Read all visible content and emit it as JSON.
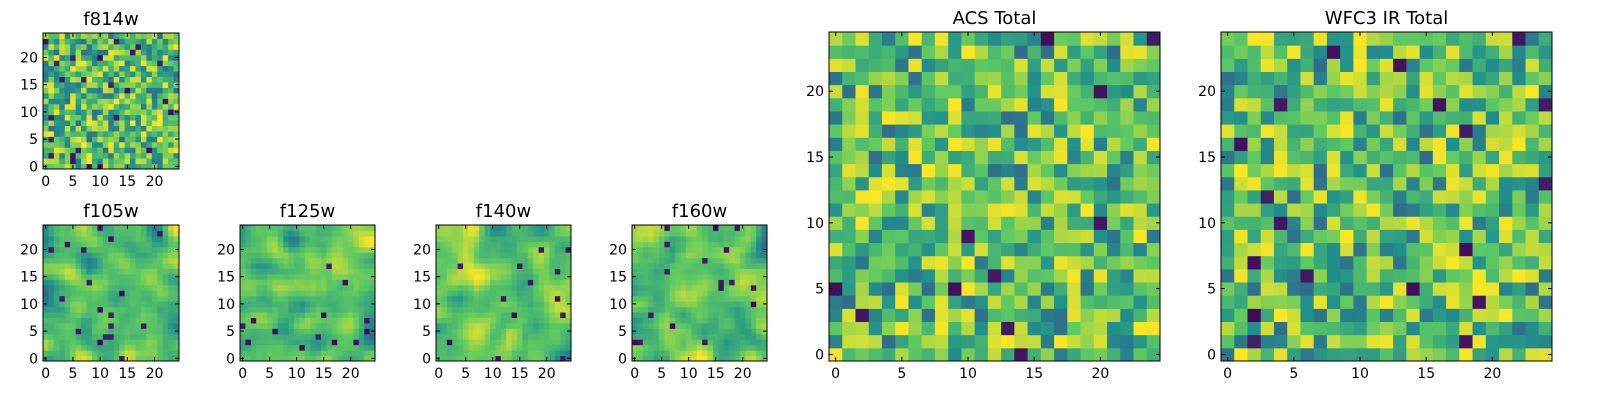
{
  "chart_data": [
    {
      "type": "heatmap",
      "title": "f814w",
      "grid_size": 25,
      "xlim": [
        0,
        25
      ],
      "ylim": [
        0,
        25
      ],
      "xticks": [
        0,
        5,
        10,
        15,
        20
      ],
      "yticks": [
        0,
        5,
        10,
        15,
        20
      ],
      "xtick_labels": [
        "0",
        "5",
        "10",
        "15",
        "20"
      ],
      "ytick_labels": [
        "0",
        "5",
        "10",
        "15",
        "20"
      ],
      "colormap": "viridis",
      "seed": 11,
      "smoothness": 0
    },
    {
      "type": "heatmap",
      "title": "f105w",
      "grid_size": 25,
      "xlim": [
        0,
        25
      ],
      "ylim": [
        0,
        25
      ],
      "xticks": [
        0,
        5,
        10,
        15,
        20
      ],
      "yticks": [
        0,
        5,
        10,
        15,
        20
      ],
      "xtick_labels": [
        "0",
        "5",
        "10",
        "15",
        "20"
      ],
      "ytick_labels": [
        "0",
        "5",
        "10",
        "15",
        "20"
      ],
      "colormap": "viridis",
      "seed": 23,
      "smoothness": 2
    },
    {
      "type": "heatmap",
      "title": "f125w",
      "grid_size": 25,
      "xlim": [
        0,
        25
      ],
      "ylim": [
        0,
        25
      ],
      "xticks": [
        0,
        5,
        10,
        15,
        20
      ],
      "yticks": [
        0,
        5,
        10,
        15,
        20
      ],
      "xtick_labels": [
        "0",
        "5",
        "10",
        "15",
        "20"
      ],
      "ytick_labels": [
        "0",
        "5",
        "10",
        "15",
        "20"
      ],
      "colormap": "viridis",
      "seed": 37,
      "smoothness": 2
    },
    {
      "type": "heatmap",
      "title": "f140w",
      "grid_size": 25,
      "xlim": [
        0,
        25
      ],
      "ylim": [
        0,
        25
      ],
      "xticks": [
        0,
        5,
        10,
        15,
        20
      ],
      "yticks": [
        0,
        5,
        10,
        15,
        20
      ],
      "xtick_labels": [
        "0",
        "5",
        "10",
        "15",
        "20"
      ],
      "ytick_labels": [
        "0",
        "5",
        "10",
        "15",
        "20"
      ],
      "colormap": "viridis",
      "seed": 41,
      "smoothness": 2
    },
    {
      "type": "heatmap",
      "title": "f160w",
      "grid_size": 25,
      "xlim": [
        0,
        25
      ],
      "ylim": [
        0,
        25
      ],
      "xticks": [
        0,
        5,
        10,
        15,
        20
      ],
      "yticks": [
        0,
        5,
        10,
        15,
        20
      ],
      "xtick_labels": [
        "0",
        "5",
        "10",
        "15",
        "20"
      ],
      "ytick_labels": [
        "0",
        "5",
        "10",
        "15",
        "20"
      ],
      "colormap": "viridis",
      "seed": 53,
      "smoothness": 2
    },
    {
      "type": "heatmap",
      "title": "ACS Total",
      "grid_size": 25,
      "xlim": [
        0,
        25
      ],
      "ylim": [
        0,
        25
      ],
      "xticks": [
        0,
        5,
        10,
        15,
        20
      ],
      "yticks": [
        0,
        5,
        10,
        15,
        20
      ],
      "xtick_labels": [
        "0",
        "5",
        "10",
        "15",
        "20"
      ],
      "ytick_labels": [
        "0",
        "5",
        "10",
        "15",
        "20"
      ],
      "colormap": "viridis",
      "seed": 67,
      "smoothness": 0
    },
    {
      "type": "heatmap",
      "title": "WFC3 IR Total",
      "grid_size": 25,
      "xlim": [
        0,
        25
      ],
      "ylim": [
        0,
        25
      ],
      "xticks": [
        0,
        5,
        10,
        15,
        20
      ],
      "yticks": [
        0,
        5,
        10,
        15,
        20
      ],
      "xtick_labels": [
        "0",
        "5",
        "10",
        "15",
        "20"
      ],
      "ytick_labels": [
        "0",
        "5",
        "10",
        "15",
        "20"
      ],
      "colormap": "viridis",
      "seed": 79,
      "smoothness": 0
    }
  ],
  "colors": {
    "viridis_stops": [
      "#440154",
      "#3b528b",
      "#21918c",
      "#5ec962",
      "#fde725"
    ],
    "axes_frame": "#000000",
    "background": "#ffffff"
  }
}
